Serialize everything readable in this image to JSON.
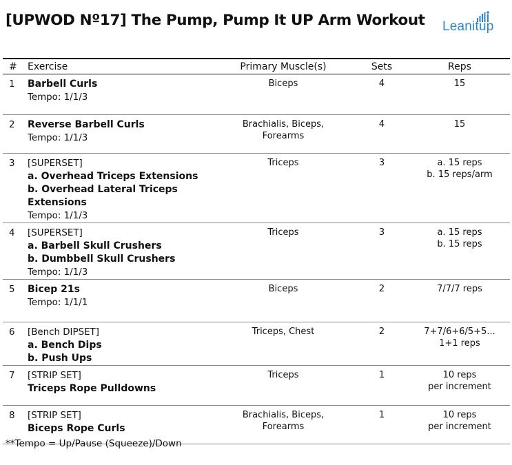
{
  "title": "[UPWOD Nº17] The Pump, Pump It UP Arm Workout",
  "logo": {
    "text": "Leanitup",
    "icon": "bar-chart-person-icon",
    "color": "#2a86c8"
  },
  "table": {
    "headers": {
      "num": "#",
      "exercise": "Exercise",
      "muscle": "Primary Muscle(s)",
      "sets": "Sets",
      "reps": "Reps"
    },
    "rows": [
      {
        "num": "1",
        "tag": "",
        "lines": [
          "Barbell Curls"
        ],
        "tempo": "Tempo: 1/1/3",
        "muscle": [
          "Biceps"
        ],
        "sets": "4",
        "reps": [
          "15"
        ]
      },
      {
        "num": "2",
        "tag": "",
        "lines": [
          "Reverse Barbell Curls"
        ],
        "tempo": "Tempo: 1/1/3",
        "muscle": [
          "Brachialis, Biceps,",
          "Forearms"
        ],
        "sets": "4",
        "reps": [
          "15"
        ]
      },
      {
        "num": "3",
        "tag": "[SUPERSET]",
        "lines": [
          "a. Overhead Triceps Extensions",
          "b. Overhead Lateral Triceps Extensions"
        ],
        "tempo": "Tempo: 1/1/3",
        "muscle": [
          "Triceps"
        ],
        "sets": "3",
        "reps": [
          "a. 15 reps",
          "b. 15 reps/arm"
        ]
      },
      {
        "num": "4",
        "tag": "[SUPERSET]",
        "lines": [
          "a. Barbell Skull Crushers",
          "b. Dumbbell Skull Crushers"
        ],
        "tempo": "Tempo: 1/1/3",
        "muscle": [
          "Triceps"
        ],
        "sets": "3",
        "reps": [
          "a. 15 reps",
          "b. 15 reps"
        ]
      },
      {
        "num": "5",
        "tag": "",
        "lines": [
          "Bicep 21s"
        ],
        "tempo": "Tempo: 1/1/1",
        "muscle": [
          "Biceps"
        ],
        "sets": "2",
        "reps": [
          "7/7/7 reps"
        ]
      },
      {
        "num": "6",
        "tag": "[Bench DIPSET]",
        "lines": [
          "a. Bench Dips",
          "b. Push Ups"
        ],
        "tempo": "",
        "muscle": [
          "Triceps, Chest"
        ],
        "sets": "2",
        "reps": [
          "7+7/6+6/5+5...",
          "1+1 reps"
        ]
      },
      {
        "num": "7",
        "tag": "[STRIP SET]",
        "lines": [
          "Triceps Rope Pulldowns"
        ],
        "tempo": "",
        "muscle": [
          "Triceps"
        ],
        "sets": "1",
        "reps": [
          "10 reps",
          "per increment"
        ]
      },
      {
        "num": "8",
        "tag": "[STRIP SET]",
        "lines": [
          "Biceps Rope Curls"
        ],
        "tempo": "",
        "muscle": [
          "Brachialis, Biceps,",
          "Forearms"
        ],
        "sets": "1",
        "reps": [
          "10 reps",
          "per increment"
        ]
      }
    ]
  },
  "footnote": "**Tempo = Up/Pause (Squeeze)/Down"
}
